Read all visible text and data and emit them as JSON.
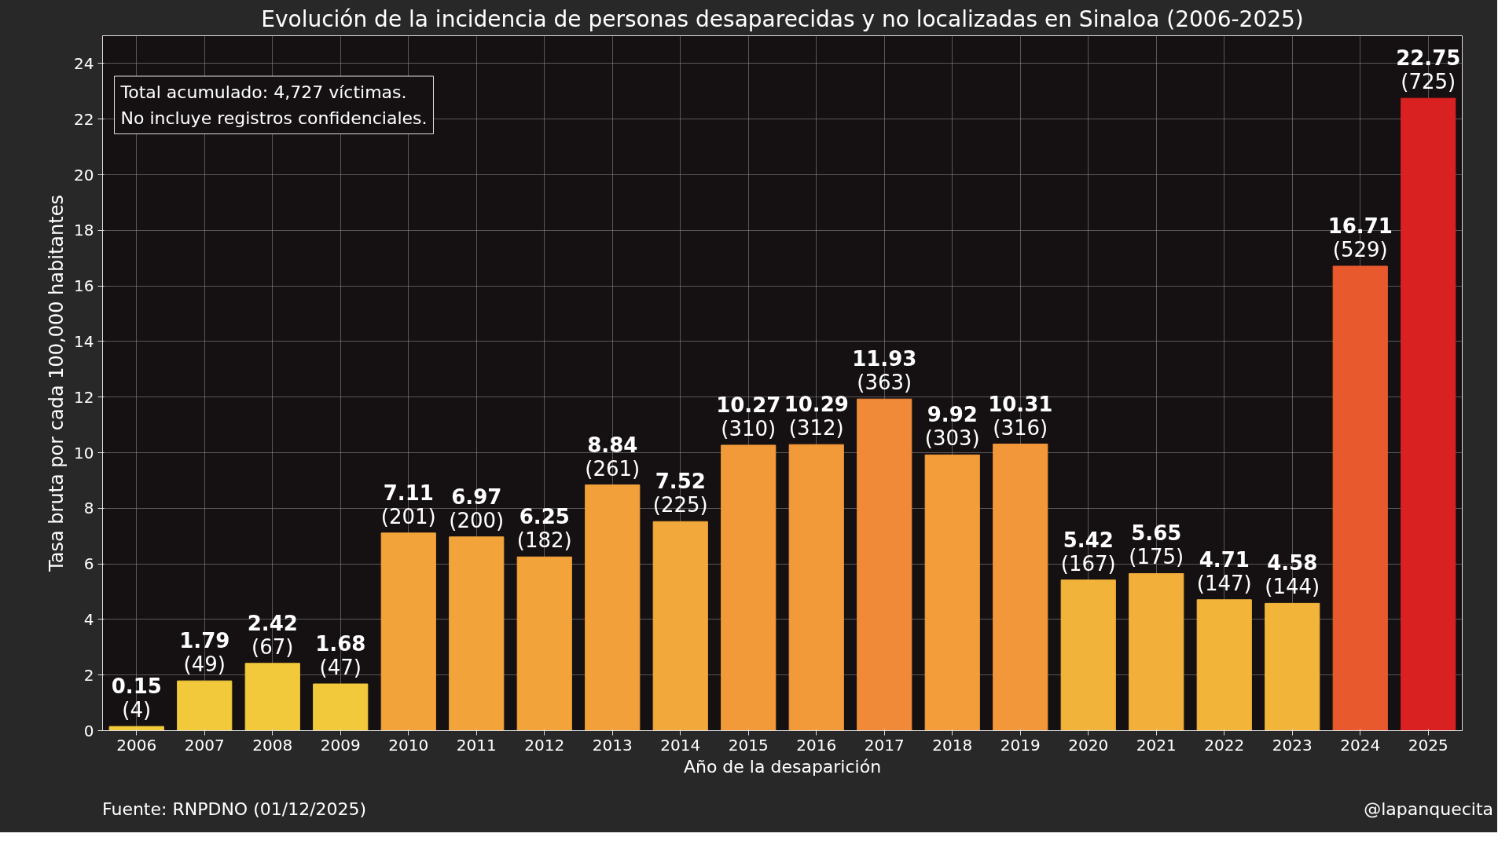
{
  "chart_data": {
    "type": "bar",
    "title": "Evolución de la incidencia de personas desaparecidas y no localizadas en Sinaloa (2006-2025)",
    "xlabel": "Año de la desaparición",
    "ylabel": "Tasa bruta por cada 100,000 habitantes",
    "categories": [
      "2006",
      "2007",
      "2008",
      "2009",
      "2010",
      "2011",
      "2012",
      "2013",
      "2014",
      "2015",
      "2016",
      "2017",
      "2018",
      "2019",
      "2020",
      "2021",
      "2022",
      "2023",
      "2024",
      "2025"
    ],
    "values": [
      0.15,
      1.79,
      2.42,
      1.68,
      7.11,
      6.97,
      6.25,
      8.84,
      7.52,
      10.27,
      10.29,
      11.93,
      9.92,
      10.31,
      5.42,
      5.65,
      4.71,
      4.58,
      16.71,
      22.75
    ],
    "value_labels": [
      "0.15\n(4)",
      "1.79\n(49)",
      "2.42\n(67)",
      "1.68\n(47)",
      "7.11\n(201)",
      "6.97\n(200)",
      "6.25\n(182)",
      "8.84\n(261)",
      "7.52\n(225)",
      "10.27\n(310)",
      "10.29\n(312)",
      "11.93\n(363)",
      "9.92\n(303)",
      "10.31\n(316)",
      "5.42\n(167)",
      "5.65\n(175)",
      "4.71\n(147)",
      "4.58\n(144)",
      "16.71\n(529)",
      "22.75\n(725)"
    ],
    "colors": [
      "#f2c93b",
      "#f2c93b",
      "#f2c93b",
      "#f2c93b",
      "#f2a33a",
      "#f2a33a",
      "#f2a33a",
      "#f2a03a",
      "#f2a83a",
      "#f29a3a",
      "#f2993a",
      "#f08a38",
      "#f29d3a",
      "#f2973a",
      "#f2b33a",
      "#f2b03a",
      "#f2b53a",
      "#f2b53a",
      "#e85a2e",
      "#d92121"
    ],
    "ylim": [
      0,
      25
    ],
    "yticks": [
      0,
      2,
      4,
      6,
      8,
      10,
      12,
      14,
      16,
      18,
      20,
      22,
      24
    ],
    "grid": true,
    "annotations": [
      "Total acumulado: 4,727 víctimas.\nNo incluye registros confidenciales.",
      "Fuente: RNPDNO (01/12/2025)",
      "@lapanquecita"
    ]
  }
}
